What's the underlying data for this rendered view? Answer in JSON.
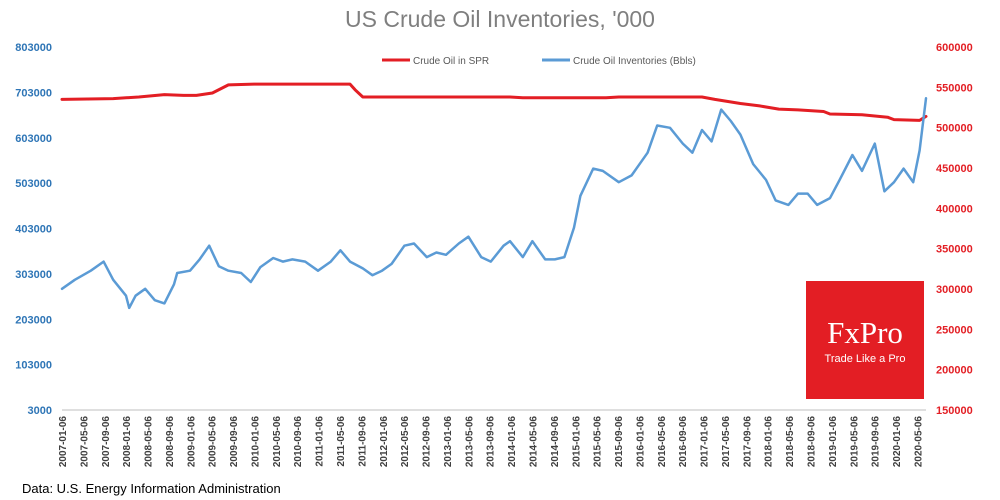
{
  "chart_data": {
    "type": "line",
    "title": "US Crude Oil Inventories, '000",
    "source": "Data: U.S. Energy Information Administration",
    "logo": {
      "brand": "FxPro",
      "tagline": "Trade Like a Pro"
    },
    "legend_position": "top",
    "left_axis": {
      "ticks": [
        "3000",
        "103000",
        "203000",
        "303000",
        "403000",
        "503000",
        "603000",
        "703000",
        "803000"
      ],
      "range": [
        3000,
        803000
      ],
      "color": "#2e75b6"
    },
    "right_axis": {
      "ticks": [
        "150000",
        "200000",
        "250000",
        "300000",
        "350000",
        "400000",
        "450000",
        "500000",
        "550000",
        "600000"
      ],
      "range": [
        150000,
        600000
      ],
      "color": "#e31e24"
    },
    "x_tick_labels": [
      "2007-01-06",
      "2007-05-06",
      "2007-09-06",
      "2008-01-06",
      "2008-05-06",
      "2008-09-06",
      "2009-01-06",
      "2009-05-06",
      "2009-09-06",
      "2010-01-06",
      "2010-05-06",
      "2010-09-06",
      "2011-01-06",
      "2011-05-06",
      "2011-09-06",
      "2012-01-06",
      "2012-05-06",
      "2012-09-06",
      "2013-01-06",
      "2013-05-06",
      "2013-09-06",
      "2014-01-06",
      "2014-05-06",
      "2014-09-06",
      "2015-01-06",
      "2015-05-06",
      "2015-09-06",
      "2016-01-06",
      "2016-05-06",
      "2016-09-06",
      "2017-01-06",
      "2017-05-06",
      "2017-09-06",
      "2018-01-06",
      "2018-05-06",
      "2018-09-06",
      "2019-01-06",
      "2019-05-06",
      "2019-09-06",
      "2020-01-06",
      "2020-05-06"
    ],
    "series": [
      {
        "name": "Crude Oil in SPR",
        "axis": "right",
        "color": "#e31e24",
        "x": [
          2007.0,
          2007.8,
          2008.2,
          2008.6,
          2008.9,
          2009.1,
          2009.35,
          2009.6,
          2010.0,
          2010.5,
          2011.0,
          2011.5,
          2011.58,
          2011.7,
          2012.0,
          2013.0,
          2014.0,
          2014.2,
          2015.0,
          2015.5,
          2015.7,
          2016.0,
          2016.5,
          2017.0,
          2017.2,
          2017.6,
          2017.9,
          2018.2,
          2018.5,
          2018.9,
          2019.0,
          2019.5,
          2019.9,
          2020.0,
          2020.4,
          2020.5
        ],
        "values": [
          535000,
          536000,
          538000,
          541000,
          540000,
          540000,
          543000,
          553000,
          554000,
          554000,
          554000,
          554000,
          547000,
          538000,
          538000,
          538000,
          538000,
          537000,
          537000,
          537000,
          538000,
          538000,
          538000,
          538000,
          535000,
          530000,
          527000,
          523000,
          522000,
          520000,
          517000,
          516000,
          513000,
          510000,
          509000,
          514000
        ]
      },
      {
        "name": "Crude Oil Inventories (Bbls)",
        "axis": "left",
        "color": "#5b9bd5",
        "x": [
          2007.0,
          2007.2,
          2007.45,
          2007.65,
          2007.8,
          2008.0,
          2008.05,
          2008.15,
          2008.3,
          2008.45,
          2008.6,
          2008.75,
          2008.8,
          2009.0,
          2009.15,
          2009.3,
          2009.45,
          2009.6,
          2009.8,
          2009.95,
          2010.1,
          2010.3,
          2010.45,
          2010.6,
          2010.8,
          2011.0,
          2011.2,
          2011.35,
          2011.5,
          2011.7,
          2011.85,
          2012.0,
          2012.15,
          2012.35,
          2012.5,
          2012.7,
          2012.85,
          2013.0,
          2013.2,
          2013.35,
          2013.55,
          2013.7,
          2013.9,
          2014.0,
          2014.2,
          2014.35,
          2014.55,
          2014.7,
          2014.85,
          2015.0,
          2015.1,
          2015.3,
          2015.45,
          2015.7,
          2015.9,
          2016.0,
          2016.15,
          2016.3,
          2016.5,
          2016.7,
          2016.85,
          2017.0,
          2017.15,
          2017.3,
          2017.45,
          2017.6,
          2017.8,
          2018.0,
          2018.15,
          2018.35,
          2018.5,
          2018.65,
          2018.8,
          2019.0,
          2019.15,
          2019.35,
          2019.5,
          2019.7,
          2019.85,
          2020.0,
          2020.15,
          2020.3,
          2020.4,
          2020.5
        ],
        "values": [
          270000,
          290000,
          310000,
          330000,
          290000,
          255000,
          228000,
          255000,
          270000,
          245000,
          238000,
          280000,
          305000,
          310000,
          335000,
          365000,
          320000,
          310000,
          305000,
          285000,
          318000,
          338000,
          330000,
          335000,
          330000,
          310000,
          330000,
          355000,
          330000,
          315000,
          300000,
          310000,
          325000,
          365000,
          370000,
          340000,
          350000,
          345000,
          370000,
          385000,
          340000,
          330000,
          365000,
          375000,
          340000,
          375000,
          335000,
          335000,
          340000,
          405000,
          475000,
          535000,
          530000,
          505000,
          520000,
          540000,
          570000,
          630000,
          625000,
          590000,
          570000,
          620000,
          595000,
          665000,
          640000,
          610000,
          545000,
          510000,
          465000,
          455000,
          480000,
          480000,
          455000,
          470000,
          510000,
          565000,
          530000,
          590000,
          485000,
          505000,
          535000,
          505000,
          575000,
          690000
        ]
      }
    ]
  }
}
